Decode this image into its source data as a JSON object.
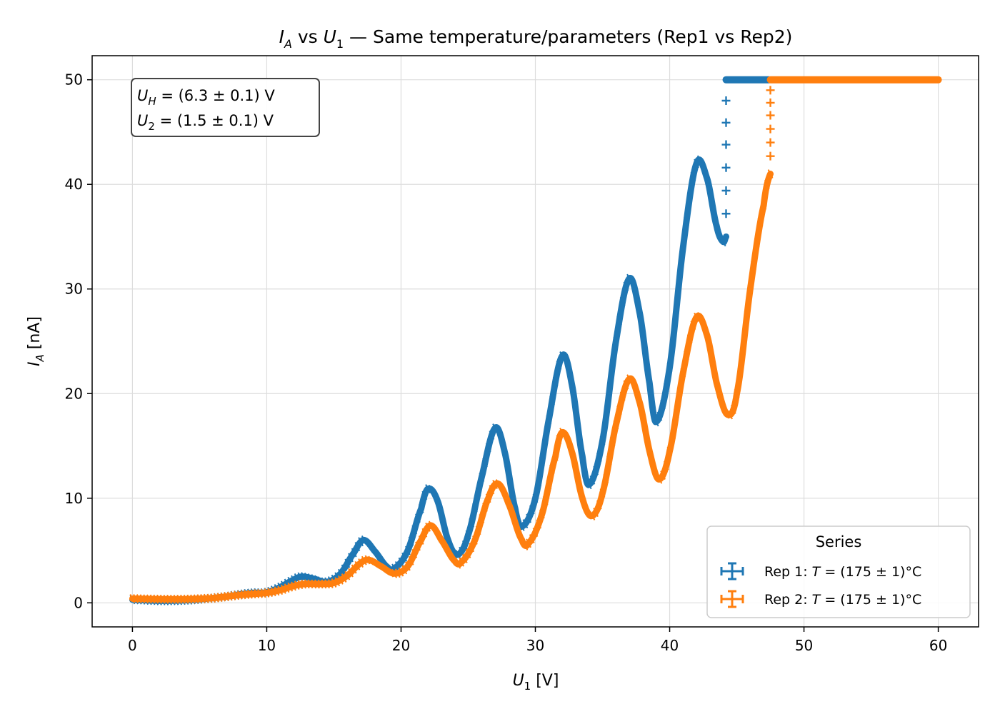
{
  "chart_data": {
    "type": "scatter",
    "title": "I_A vs U_1 — Same temperature/parameters (Rep1 vs Rep2)",
    "title_parts": {
      "i": "I",
      "a": "A",
      "vs": " vs ",
      "u": "U",
      "one": "1",
      "rest": " — Same temperature/parameters (Rep1 vs Rep2)"
    },
    "xlabel": "U_1 [V]",
    "xlabel_parts": {
      "u": "U",
      "sub": "1",
      "unit": " [V]"
    },
    "ylabel": "I_A [nA]",
    "ylabel_parts": {
      "i": "I",
      "sub": "A",
      "unit": " [nA]"
    },
    "xlim": [
      -3,
      63
    ],
    "ylim": [
      -2.3,
      52.3
    ],
    "xticks": [
      0,
      10,
      20,
      30,
      40,
      50,
      60
    ],
    "yticks": [
      0,
      10,
      20,
      30,
      40,
      50
    ],
    "grid": true,
    "annotation": {
      "position": "top-left",
      "line1": "U_H = (6.3 ± 0.1) V",
      "line2": "U_2 = (1.5 ± 0.1) V",
      "line1_parts": {
        "sym": "U",
        "sub": "H",
        "rest": " = (6.3 ± 0.1) V"
      },
      "line2_parts": {
        "sym": "U",
        "sub": "2",
        "rest": " = (1.5 ± 0.1) V"
      }
    },
    "legend": {
      "title": "Series",
      "placement": "lower-right"
    },
    "series": [
      {
        "name": "Rep 1: T = (175 ± 1)°C",
        "label_parts": {
          "pre": "Rep 1: ",
          "sym": "T",
          "rest": " = (175 ± 1)°C"
        },
        "color": "#1f77b4",
        "x_max": 44.2,
        "saturation_value": 50,
        "points": [
          [
            0,
            0.3
          ],
          [
            2,
            0.2
          ],
          [
            4,
            0.25
          ],
          [
            6,
            0.45
          ],
          [
            7,
            0.6
          ],
          [
            8,
            0.8
          ],
          [
            9,
            0.95
          ],
          [
            10,
            1.0
          ],
          [
            11,
            1.5
          ],
          [
            12,
            2.2
          ],
          [
            12.6,
            2.5
          ],
          [
            13.5,
            2.3
          ],
          [
            14.5,
            2.0
          ],
          [
            15.5,
            2.8
          ],
          [
            16.5,
            4.8
          ],
          [
            17.2,
            6.0
          ],
          [
            18,
            5.0
          ],
          [
            19,
            3.4
          ],
          [
            19.5,
            3.3
          ],
          [
            20.5,
            5.0
          ],
          [
            21.5,
            9.0
          ],
          [
            22,
            10.9
          ],
          [
            22.7,
            9.8
          ],
          [
            23.5,
            6.0
          ],
          [
            24.2,
            4.6
          ],
          [
            25,
            6.5
          ],
          [
            26,
            12.0
          ],
          [
            27,
            16.7
          ],
          [
            27.7,
            14.5
          ],
          [
            28.5,
            9.0
          ],
          [
            29,
            7.3
          ],
          [
            30,
            10.0
          ],
          [
            31,
            17.5
          ],
          [
            32,
            23.6
          ],
          [
            32.7,
            21.0
          ],
          [
            33.5,
            14.0
          ],
          [
            34,
            11.3
          ],
          [
            35,
            15.5
          ],
          [
            36,
            25.0
          ],
          [
            37,
            31.0
          ],
          [
            37.8,
            27.5
          ],
          [
            38.5,
            21.0
          ],
          [
            39,
            17.3
          ],
          [
            40,
            22.5
          ],
          [
            41,
            34.0
          ],
          [
            42,
            42.0
          ],
          [
            42.8,
            40.5
          ],
          [
            43.5,
            36.0
          ],
          [
            44,
            34.5
          ],
          [
            44.2,
            35.0
          ]
        ],
        "jump_points": [
          [
            44.2,
            37.2
          ],
          [
            44.2,
            39.4
          ],
          [
            44.2,
            41.6
          ],
          [
            44.2,
            43.8
          ],
          [
            44.2,
            45.9
          ],
          [
            44.2,
            48.0
          ]
        ],
        "saturation_x": [
          44.2,
          47.4
        ]
      },
      {
        "name": "Rep 2: T = (175 ± 1)°C",
        "label_parts": {
          "pre": "Rep 2: ",
          "sym": "T",
          "rest": " = (175 ± 1)°C"
        },
        "color": "#ff7f0e",
        "x_max": 47.5,
        "saturation_value": 50,
        "points": [
          [
            0,
            0.4
          ],
          [
            2,
            0.35
          ],
          [
            4,
            0.35
          ],
          [
            6,
            0.45
          ],
          [
            7,
            0.6
          ],
          [
            8,
            0.75
          ],
          [
            9,
            0.85
          ],
          [
            10,
            0.95
          ],
          [
            11,
            1.2
          ],
          [
            12,
            1.6
          ],
          [
            12.8,
            1.8
          ],
          [
            14,
            1.8
          ],
          [
            15,
            1.9
          ],
          [
            16,
            2.6
          ],
          [
            17,
            3.8
          ],
          [
            17.6,
            4.1
          ],
          [
            18.5,
            3.5
          ],
          [
            19.5,
            2.8
          ],
          [
            20.5,
            3.5
          ],
          [
            21.5,
            6.0
          ],
          [
            22.2,
            7.4
          ],
          [
            23,
            6.0
          ],
          [
            24,
            4.0
          ],
          [
            24.5,
            3.9
          ],
          [
            25.5,
            6.0
          ],
          [
            26.5,
            10.0
          ],
          [
            27.2,
            11.4
          ],
          [
            28,
            9.5
          ],
          [
            29,
            6.0
          ],
          [
            29.5,
            5.7
          ],
          [
            30.5,
            8.5
          ],
          [
            31.5,
            14.0
          ],
          [
            32,
            16.3
          ],
          [
            32.7,
            14.5
          ],
          [
            33.5,
            10.0
          ],
          [
            34.2,
            8.3
          ],
          [
            35,
            10.5
          ],
          [
            36,
            17.0
          ],
          [
            37,
            21.4
          ],
          [
            37.8,
            19.0
          ],
          [
            38.5,
            14.5
          ],
          [
            39.2,
            11.8
          ],
          [
            40,
            14.5
          ],
          [
            41,
            22.0
          ],
          [
            42,
            27.3
          ],
          [
            42.8,
            25.5
          ],
          [
            43.5,
            21.0
          ],
          [
            44.3,
            18.0
          ],
          [
            45,
            20.0
          ],
          [
            46,
            30.0
          ],
          [
            47,
            38.0
          ],
          [
            47.5,
            41.0
          ]
        ],
        "jump_points": [
          [
            47.5,
            42.7
          ],
          [
            47.5,
            44.0
          ],
          [
            47.5,
            45.3
          ],
          [
            47.5,
            46.6
          ],
          [
            47.5,
            47.8
          ],
          [
            47.5,
            49.0
          ]
        ],
        "saturation_x": [
          47.5,
          60.0
        ]
      }
    ]
  }
}
